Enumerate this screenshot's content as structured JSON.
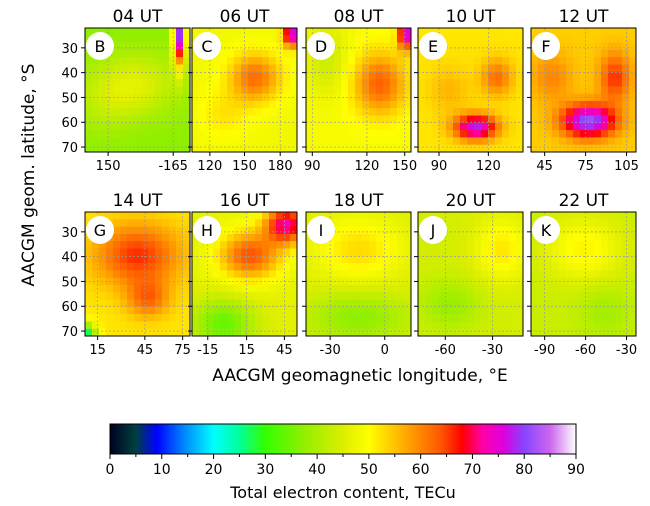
{
  "figure": {
    "ylabel": "AACGM geom. latitude, °S",
    "xlabel": "AACGM geomagnetic longitude, °E"
  },
  "colorbar": {
    "label": "Total electron content, TECu",
    "ticks": [
      "0",
      "10",
      "20",
      "30",
      "40",
      "50",
      "60",
      "70",
      "80",
      "90"
    ],
    "range": [
      0,
      90
    ],
    "stops": [
      [
        0,
        "#000020"
      ],
      [
        5,
        "#004040"
      ],
      [
        9,
        "#0000ff"
      ],
      [
        14,
        "#0080ff"
      ],
      [
        20,
        "#00ffff"
      ],
      [
        25,
        "#00ff99"
      ],
      [
        30,
        "#33ff00"
      ],
      [
        38,
        "#99ee00"
      ],
      [
        45,
        "#ddee00"
      ],
      [
        50,
        "#ffff00"
      ],
      [
        57,
        "#ffaa00"
      ],
      [
        64,
        "#ff5500"
      ],
      [
        68,
        "#ff0000"
      ],
      [
        72,
        "#ff00aa"
      ],
      [
        76,
        "#dd00dd"
      ],
      [
        80,
        "#8844ff"
      ],
      [
        85,
        "#cc66ee"
      ],
      [
        90,
        "#ffffff"
      ]
    ]
  },
  "chart_data": {
    "type": "heatmap",
    "value_unit": "TECu",
    "lat_range": [
      22,
      72
    ],
    "lat_ticks": [
      "30",
      "40",
      "50",
      "60",
      "70"
    ],
    "panels": [
      {
        "letter": "B",
        "title": "04 UT",
        "xticks": [
          "150",
          "-165"
        ],
        "xtick_pos": [
          0.22,
          0.84
        ],
        "base": 37,
        "blobs": [
          [
            0.9,
            0.05,
            0.06,
            0.25,
            42
          ],
          [
            0.5,
            0.45,
            0.4,
            0.25,
            8
          ],
          [
            0.2,
            0.6,
            0.3,
            0.25,
            4
          ]
        ]
      },
      {
        "letter": "C",
        "title": "06 UT",
        "xticks": [
          "120",
          "150",
          "180"
        ],
        "xtick_pos": [
          0.17,
          0.5,
          0.84
        ],
        "base": 48,
        "blobs": [
          [
            0.6,
            0.4,
            0.25,
            0.2,
            14
          ],
          [
            0.95,
            0.05,
            0.08,
            0.1,
            30
          ],
          [
            0.3,
            0.7,
            0.25,
            0.2,
            4
          ]
        ]
      },
      {
        "letter": "D",
        "title": "08 UT",
        "xticks": [
          "90",
          "120",
          "150"
        ],
        "xtick_pos": [
          0.06,
          0.58,
          0.94
        ],
        "base": 49,
        "blobs": [
          [
            0.7,
            0.45,
            0.25,
            0.25,
            14
          ],
          [
            0.95,
            0.05,
            0.07,
            0.12,
            28
          ],
          [
            0.2,
            0.25,
            0.2,
            0.3,
            -6
          ]
        ]
      },
      {
        "letter": "E",
        "title": "10 UT",
        "xticks": [
          "90",
          "120"
        ],
        "xtick_pos": [
          0.2,
          0.67
        ],
        "base": 52,
        "blobs": [
          [
            0.55,
            0.8,
            0.2,
            0.1,
            26
          ],
          [
            0.75,
            0.4,
            0.15,
            0.15,
            10
          ],
          [
            0.3,
            0.5,
            0.2,
            0.2,
            4
          ]
        ]
      },
      {
        "letter": "F",
        "title": "12 UT",
        "xticks": [
          "45",
          "75",
          "105"
        ],
        "xtick_pos": [
          0.13,
          0.52,
          0.91
        ],
        "base": 54,
        "blobs": [
          [
            0.55,
            0.75,
            0.25,
            0.13,
            28
          ],
          [
            0.8,
            0.4,
            0.15,
            0.2,
            12
          ],
          [
            0.2,
            0.4,
            0.2,
            0.2,
            6
          ]
        ]
      },
      {
        "letter": "G",
        "title": "14 UT",
        "xticks": [
          "15",
          "45",
          "75"
        ],
        "xtick_pos": [
          0.12,
          0.57,
          0.93
        ],
        "base": 52,
        "blobs": [
          [
            0.5,
            0.35,
            0.4,
            0.25,
            14
          ],
          [
            0.6,
            0.7,
            0.2,
            0.15,
            10
          ],
          [
            0.0,
            1.0,
            0.1,
            0.1,
            -30
          ]
        ]
      },
      {
        "letter": "H",
        "title": "16 UT",
        "xticks": [
          "-15",
          "15",
          "45"
        ],
        "xtick_pos": [
          0.15,
          0.52,
          0.88
        ],
        "base": 46,
        "blobs": [
          [
            0.55,
            0.35,
            0.3,
            0.2,
            18
          ],
          [
            0.9,
            0.1,
            0.2,
            0.15,
            26
          ],
          [
            0.3,
            0.9,
            0.3,
            0.2,
            -12
          ]
        ]
      },
      {
        "letter": "I",
        "title": "18 UT",
        "xticks": [
          "-30",
          "0"
        ],
        "xtick_pos": [
          0.23,
          0.75
        ],
        "base": 45,
        "blobs": [
          [
            0.5,
            0.3,
            0.4,
            0.25,
            8
          ],
          [
            0.5,
            0.85,
            0.5,
            0.2,
            -8
          ]
        ]
      },
      {
        "letter": "J",
        "title": "20 UT",
        "xticks": [
          "-60",
          "-30"
        ],
        "xtick_pos": [
          0.26,
          0.71
        ],
        "base": 44,
        "blobs": [
          [
            0.8,
            0.3,
            0.25,
            0.25,
            8
          ],
          [
            0.3,
            0.75,
            0.3,
            0.2,
            -6
          ]
        ]
      },
      {
        "letter": "K",
        "title": "22 UT",
        "xticks": [
          "-90",
          "-60",
          "-30"
        ],
        "xtick_pos": [
          0.13,
          0.52,
          0.91
        ],
        "base": 43,
        "blobs": [
          [
            0.5,
            0.3,
            0.35,
            0.25,
            8
          ],
          [
            0.7,
            0.8,
            0.25,
            0.2,
            -4
          ]
        ]
      }
    ]
  }
}
